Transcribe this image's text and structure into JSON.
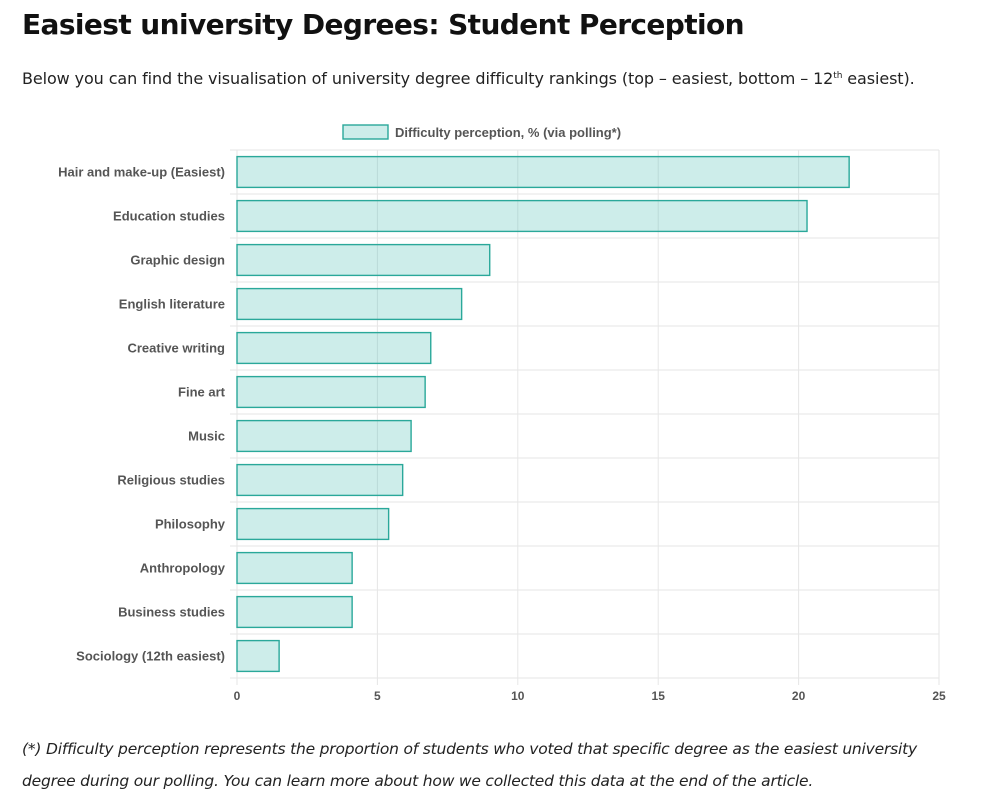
{
  "page": {
    "title": "Easiest university Degrees: Student Perception",
    "intro_prefix": "Below you can find the visualisation of university degree difficulty rankings (top – easiest, bottom – 12",
    "intro_sup": "th",
    "intro_suffix": " easiest).",
    "footnote": "(*) Difficulty perception represents the proportion of students who voted that specific degree as the easiest university degree during our polling. You can learn more about how we collected this data at the end of the article."
  },
  "colors": {
    "bar_fill": "rgba(75, 192, 178, 0.28)",
    "bar_stroke": "#2aa89a",
    "grid": "#e6e6e6",
    "label_text": "#555555"
  },
  "chart_data": {
    "type": "bar",
    "orientation": "horizontal",
    "categories": [
      "Hair and make-up (Easiest)",
      "Education studies",
      "Graphic design",
      "English literature",
      "Creative writing",
      "Fine art",
      "Music",
      "Religious studies",
      "Philosophy",
      "Anthropology",
      "Business studies",
      "Sociology (12th easiest)"
    ],
    "series": [
      {
        "name": "Difficulty perception, % (via polling*)",
        "values": [
          21.8,
          20.3,
          9.0,
          8.0,
          6.9,
          6.7,
          6.2,
          5.9,
          5.4,
          4.1,
          4.1,
          1.5
        ]
      }
    ],
    "xlim": [
      0,
      25
    ],
    "x_ticks": [
      "0",
      "5",
      "10",
      "15",
      "20",
      "25"
    ],
    "xlabel": "",
    "ylabel": "",
    "grid": true,
    "legend_position": "top-center"
  }
}
